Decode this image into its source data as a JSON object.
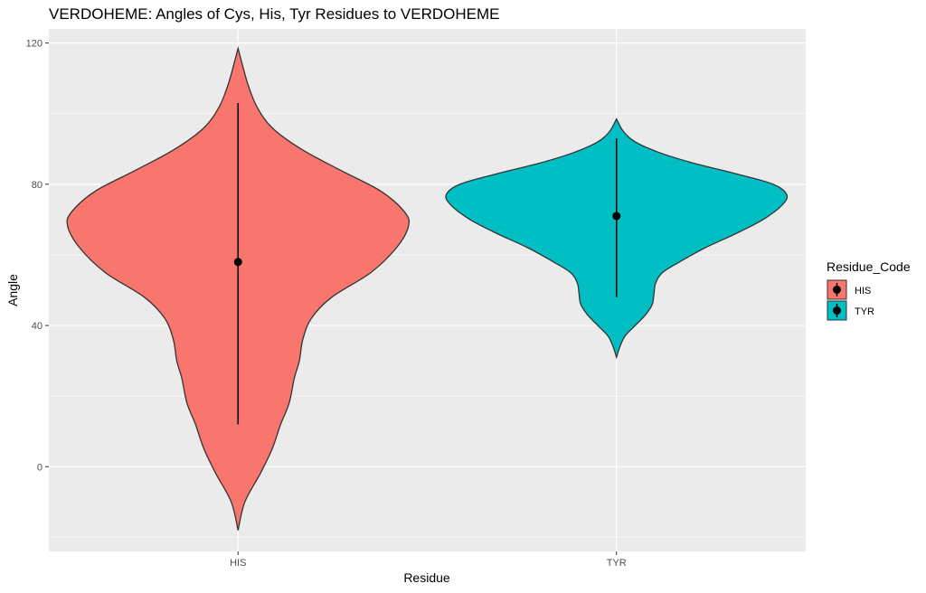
{
  "chart_data": {
    "type": "violin",
    "title": "VERDOHEME: Angles of Cys, His, Tyr Residues to VERDOHEME",
    "xlabel": "Residue",
    "ylabel": "Angle",
    "categories": [
      "HIS",
      "TYR"
    ],
    "ylim": [
      -24,
      124
    ],
    "yticks": [
      0,
      40,
      80,
      120
    ],
    "grid": true,
    "legend": {
      "title": "Residue_Code",
      "position": "right",
      "entries": [
        {
          "label": "HIS",
          "color": "#F8766D"
        },
        {
          "label": "TYR",
          "color": "#00BFC4"
        }
      ]
    },
    "series": [
      {
        "category": "HIS",
        "color": "#F8766D",
        "mean": 58,
        "range": [
          12,
          103
        ],
        "ymin": -18,
        "ymax": 118.5,
        "density": [
          [
            -18,
            0.0
          ],
          [
            -10,
            0.04
          ],
          [
            -2,
            0.13
          ],
          [
            5,
            0.2
          ],
          [
            12,
            0.25
          ],
          [
            18,
            0.3
          ],
          [
            25,
            0.33
          ],
          [
            30,
            0.36
          ],
          [
            36,
            0.38
          ],
          [
            42,
            0.43
          ],
          [
            48,
            0.55
          ],
          [
            55,
            0.78
          ],
          [
            62,
            0.93
          ],
          [
            68,
            1.0
          ],
          [
            72,
            0.98
          ],
          [
            78,
            0.84
          ],
          [
            84,
            0.6
          ],
          [
            90,
            0.37
          ],
          [
            96,
            0.2
          ],
          [
            102,
            0.11
          ],
          [
            108,
            0.06
          ],
          [
            113,
            0.03
          ],
          [
            118.5,
            0.0
          ]
        ]
      },
      {
        "category": "TYR",
        "color": "#00BFC4",
        "mean": 71,
        "range": [
          48,
          93
        ],
        "ymin": 31,
        "ymax": 98.5,
        "density": [
          [
            31,
            0.0
          ],
          [
            34,
            0.02
          ],
          [
            37,
            0.05
          ],
          [
            40,
            0.11
          ],
          [
            43,
            0.17
          ],
          [
            46,
            0.21
          ],
          [
            49,
            0.22
          ],
          [
            52,
            0.23
          ],
          [
            55,
            0.27
          ],
          [
            58,
            0.37
          ],
          [
            62,
            0.52
          ],
          [
            66,
            0.7
          ],
          [
            70,
            0.86
          ],
          [
            74,
            0.97
          ],
          [
            77,
            1.0
          ],
          [
            80,
            0.92
          ],
          [
            83,
            0.7
          ],
          [
            86,
            0.45
          ],
          [
            89,
            0.25
          ],
          [
            92,
            0.11
          ],
          [
            95,
            0.04
          ],
          [
            98.5,
            0.0
          ]
        ]
      }
    ]
  }
}
